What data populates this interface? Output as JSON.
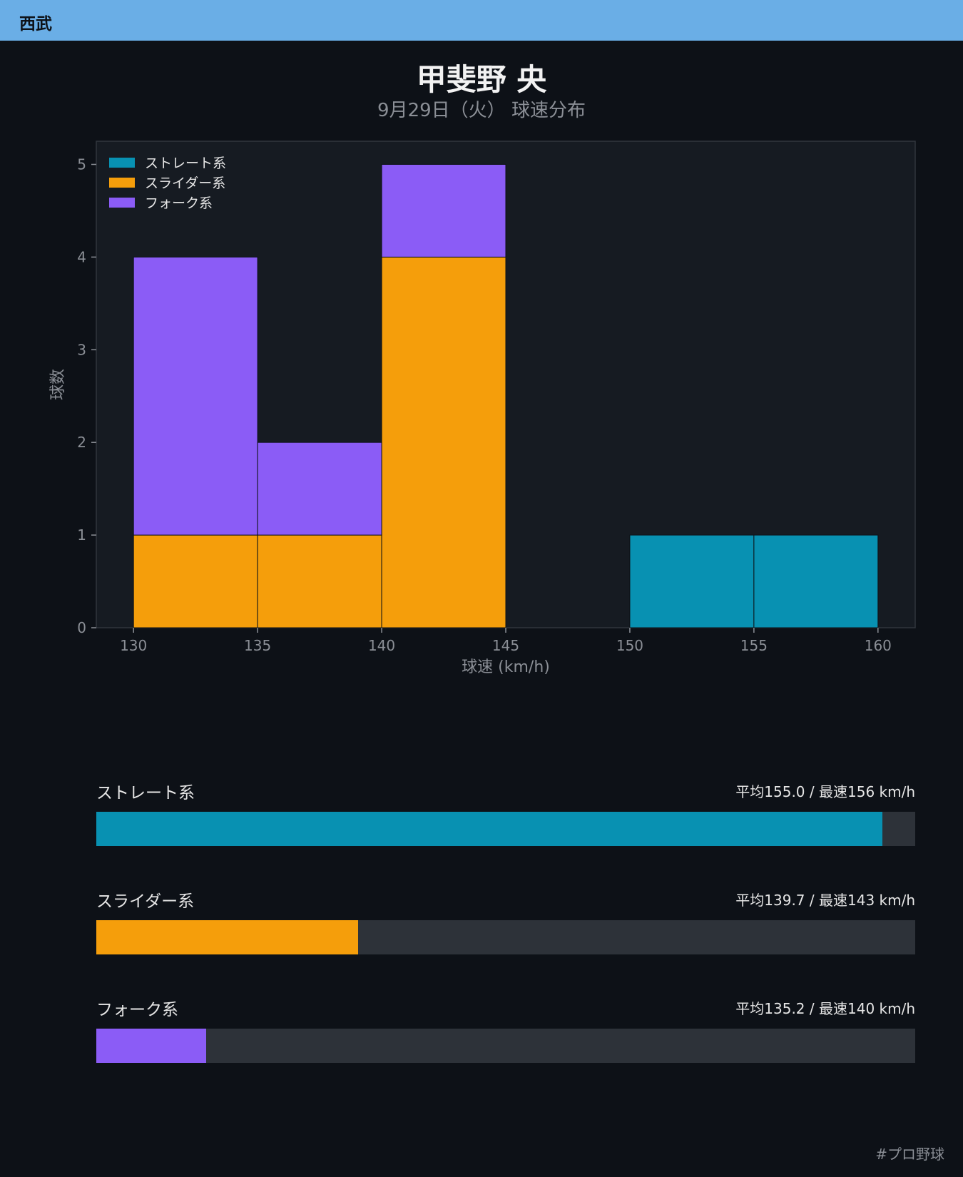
{
  "header": {
    "team": "西武"
  },
  "title": "甲斐野 央",
  "subtitle": "9月29日（火） 球速分布",
  "hashtag": "#プロ野球",
  "colors": {
    "straight": "#0891b2",
    "slider": "#f59e0b",
    "fork": "#8b5cf6",
    "track": "#2d3239",
    "header": "#6aaee6"
  },
  "chart_data": {
    "type": "bar",
    "stacked": true,
    "histogram": true,
    "bin_edges": [
      130,
      135,
      140,
      145,
      150,
      155,
      160
    ],
    "xlabel": "球速 (km/h)",
    "ylabel": "球数",
    "xlim": [
      128.5,
      161.5
    ],
    "ylim": [
      0,
      5.25
    ],
    "xticks": [
      130,
      135,
      140,
      145,
      150,
      155,
      160
    ],
    "yticks": [
      0,
      1,
      2,
      3,
      4,
      5
    ],
    "legend_position": "top-left",
    "grid": false,
    "series": [
      {
        "name": "ストレート系",
        "color": "#0891b2",
        "values": [
          0,
          0,
          0,
          0,
          1,
          1
        ]
      },
      {
        "name": "スライダー系",
        "color": "#f59e0b",
        "values": [
          1,
          1,
          4,
          0,
          0,
          0
        ]
      },
      {
        "name": "フォーク系",
        "color": "#8b5cf6",
        "values": [
          3,
          1,
          1,
          0,
          0,
          0
        ]
      }
    ]
  },
  "stats": [
    {
      "label": "ストレート系",
      "value": "平均155.0 / 最速156 km/h",
      "fill_fraction": 0.96,
      "color": "#0891b2"
    },
    {
      "label": "スライダー系",
      "value": "平均139.7 / 最速143 km/h",
      "fill_fraction": 0.32,
      "color": "#f59e0b"
    },
    {
      "label": "フォーク系",
      "value": "平均135.2 / 最速140 km/h",
      "fill_fraction": 0.134,
      "color": "#8b5cf6"
    }
  ]
}
